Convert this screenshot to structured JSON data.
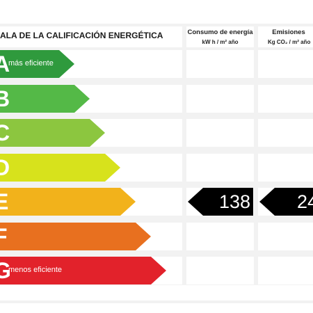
{
  "header": {
    "title": "ALA DE LA CALIFICACIÓN ENERGÉTICA",
    "energy_col": {
      "title": "Consumo de energía",
      "unit": "kW h / m² año"
    },
    "emissions_col": {
      "title": "Emisiones",
      "unit": "Kg CO₂ / m² año"
    }
  },
  "ratings": [
    {
      "letter": "A",
      "label": "más eficiente",
      "color": "#2f9a3d"
    },
    {
      "letter": "B",
      "label": "",
      "color": "#54b947"
    },
    {
      "letter": "C",
      "label": "",
      "color": "#8cc63f"
    },
    {
      "letter": "D",
      "label": "",
      "color": "#d7e21c"
    },
    {
      "letter": "E",
      "label": "",
      "color": "#f2b21b"
    },
    {
      "letter": "F",
      "label": "",
      "color": "#e8701f"
    },
    {
      "letter": "G",
      "label": "menos eficiente",
      "color": "#e2222b"
    }
  ],
  "current": {
    "rating": "E",
    "energy_value": "138",
    "emissions_value": "24"
  }
}
